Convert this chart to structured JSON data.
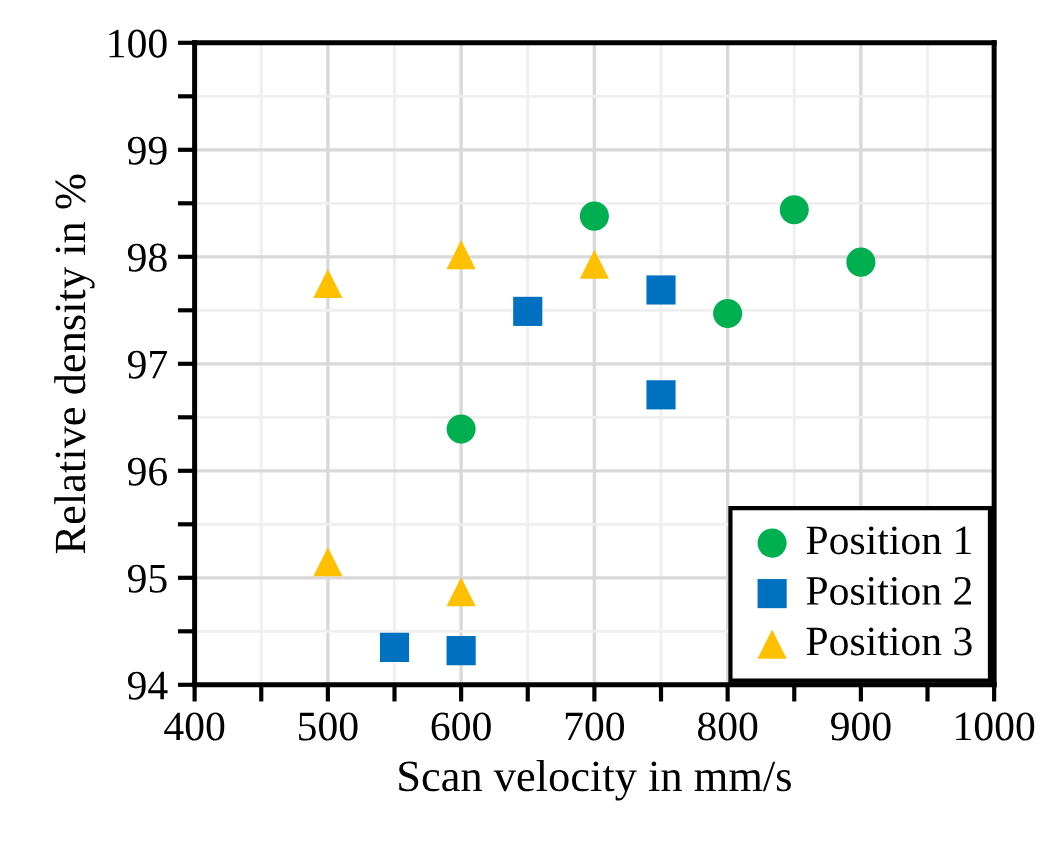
{
  "chart_data": {
    "type": "scatter",
    "xlabel": "Scan velocity in mm/s",
    "ylabel": "Relative density in %",
    "xlim": [
      400,
      1000
    ],
    "xticks": [
      400,
      500,
      600,
      700,
      800,
      900,
      1000
    ],
    "ylim": [
      94,
      100
    ],
    "yticks": [
      94,
      95,
      96,
      97,
      98,
      99,
      100
    ],
    "grid": true,
    "legend": "bottom right",
    "series": [
      {
        "name": "Position 1",
        "color": "#00b050",
        "marker": "circle",
        "x": [
          600,
          700,
          800,
          850,
          900
        ],
        "values": [
          96.39,
          98.38,
          97.47,
          98.44,
          97.95
        ]
      },
      {
        "name": "Position 2",
        "color": "#0070c0",
        "marker": "square",
        "x": [
          550,
          600,
          650,
          750,
          750
        ],
        "values": [
          94.35,
          94.32,
          97.49,
          97.69,
          96.71
        ]
      },
      {
        "name": "Position 3",
        "color": "#ffc000",
        "marker": "triangle",
        "x": [
          500,
          500,
          600,
          600,
          700
        ],
        "values": [
          97.75,
          95.15,
          98.02,
          94.87,
          97.93
        ]
      }
    ]
  }
}
